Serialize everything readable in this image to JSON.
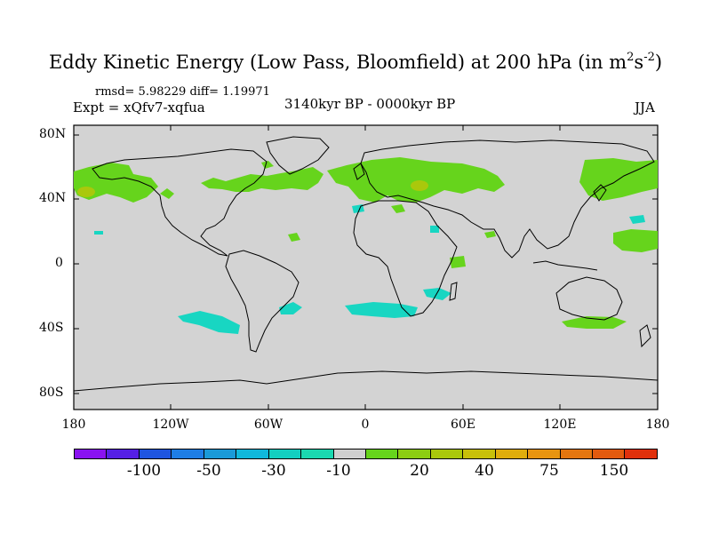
{
  "title": {
    "main": "Eddy Kinetic Energy (Low Pass, Bloomfield) at 200 hPa (in m",
    "sup1": "2",
    "mid": "s",
    "sup2": "-2",
    "end": ")"
  },
  "stats": "rmsd= 5.98229 diff= 1.19971",
  "expt": "Expt = xQfv7-xqfua",
  "period": "3140kyr BP - 0000kyr BP",
  "season": "JJA",
  "y_ticks": [
    "80N",
    "40N",
    "0",
    "40S",
    "80S"
  ],
  "x_ticks": [
    "180",
    "120W",
    "60W",
    "0",
    "60E",
    "120E",
    "180"
  ],
  "colorbar": {
    "colors": [
      "#8a12f0",
      "#5520e6",
      "#1f55e0",
      "#1e7ee6",
      "#1a9ad8",
      "#10b8dc",
      "#14cfc0",
      "#1ad8b0",
      "#cfcfcf",
      "#66d41c",
      "#8ccd12",
      "#aac80c",
      "#c8c00a",
      "#e0ad0c",
      "#e89410",
      "#e47610",
      "#e25a0e",
      "#e0300c"
    ],
    "labels": [
      "-100",
      "-50",
      "-30",
      "-10",
      "20",
      "40",
      "75",
      "150"
    ]
  },
  "colors": {
    "land_ocean": "#d3d3d3",
    "positive_anomaly": "#66d41c",
    "strong_positive": "#aac80c",
    "negative_anomaly": "#18d6c2"
  }
}
